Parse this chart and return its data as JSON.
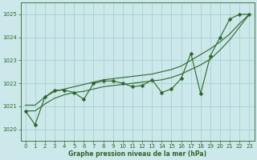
{
  "title": "Graphe pression niveau de la mer (hPa)",
  "background_color": "#cce8ea",
  "grid_color": "#9ecece",
  "line_color": "#2d6628",
  "xlim": [
    -0.5,
    23.5
  ],
  "ylim": [
    1019.5,
    1025.5
  ],
  "yticks": [
    1020,
    1021,
    1022,
    1023,
    1024,
    1025
  ],
  "xticks": [
    0,
    1,
    2,
    3,
    4,
    5,
    6,
    7,
    8,
    9,
    10,
    11,
    12,
    13,
    14,
    15,
    16,
    17,
    18,
    19,
    20,
    21,
    22,
    23
  ],
  "jagged_y": [
    1020.8,
    1020.2,
    1021.4,
    1021.7,
    1021.7,
    1021.6,
    1021.3,
    1022.0,
    1022.1,
    1022.1,
    1022.0,
    1021.85,
    1021.9,
    1022.15,
    1021.6,
    1021.75,
    1022.2,
    1023.3,
    1021.55,
    1023.2,
    1024.0,
    1024.8,
    1025.0,
    1025.0
  ],
  "upper_line_y": [
    1021.05,
    1021.05,
    1021.4,
    1021.65,
    1021.75,
    1021.85,
    1021.95,
    1022.05,
    1022.15,
    1022.2,
    1022.25,
    1022.3,
    1022.35,
    1022.4,
    1022.5,
    1022.6,
    1022.75,
    1023.0,
    1023.25,
    1023.5,
    1023.8,
    1024.15,
    1024.6,
    1025.0
  ],
  "lower_line_y": [
    1020.8,
    1020.8,
    1021.1,
    1021.35,
    1021.5,
    1021.6,
    1021.65,
    1021.75,
    1021.85,
    1021.9,
    1021.95,
    1022.0,
    1022.05,
    1022.1,
    1022.15,
    1022.25,
    1022.4,
    1022.6,
    1022.8,
    1023.05,
    1023.45,
    1023.9,
    1024.45,
    1025.0
  ],
  "marker_size": 2.5,
  "line_width": 0.8,
  "tick_fontsize": 5.0,
  "xlabel_fontsize": 5.5
}
